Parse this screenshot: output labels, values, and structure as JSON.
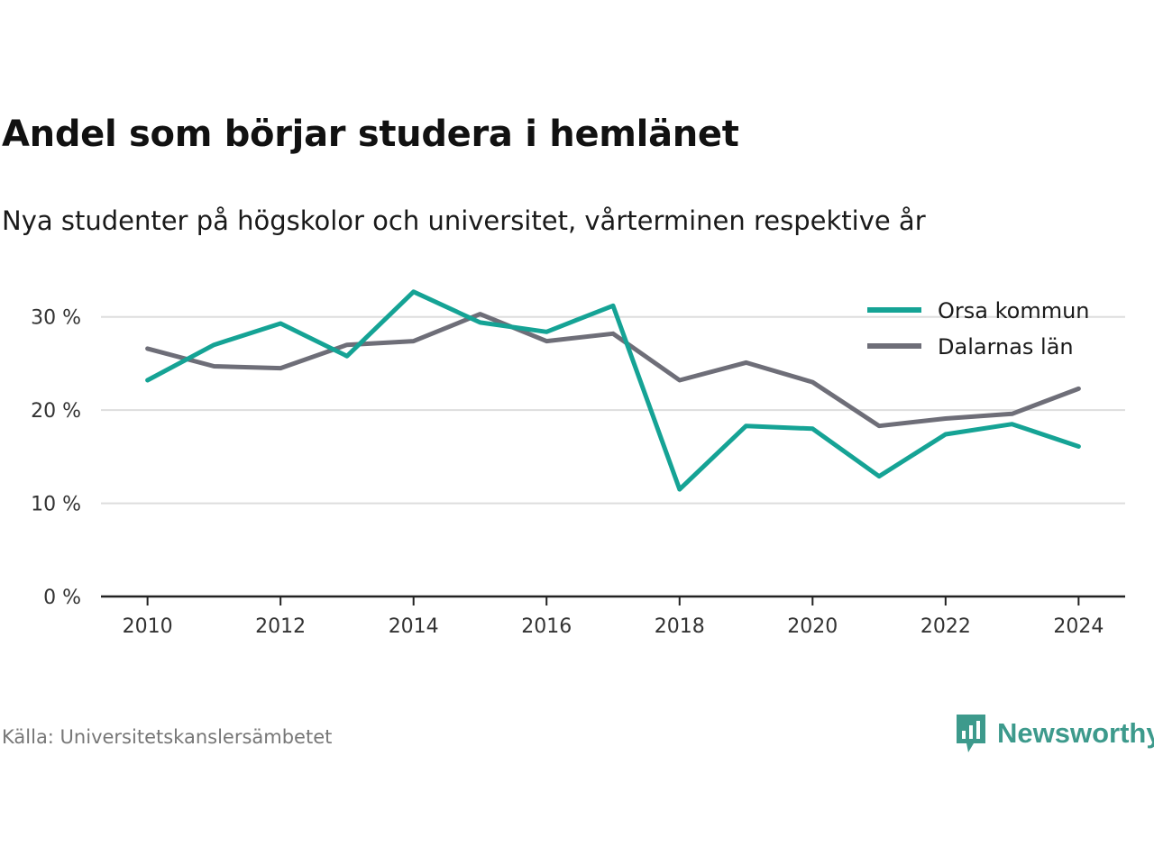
{
  "chart_data": {
    "type": "line",
    "title": "Andel som börjar studera i hemlänet",
    "subtitle": "Nya studenter på högskolor och universitet, vårterminen respektive år",
    "x": [
      2010,
      2011,
      2012,
      2013,
      2014,
      2015,
      2016,
      2017,
      2018,
      2019,
      2020,
      2021,
      2022,
      2023,
      2024
    ],
    "x_ticks": [
      2010,
      2012,
      2014,
      2016,
      2018,
      2020,
      2022,
      2024
    ],
    "y_ticks": [
      {
        "value": 0,
        "label": "0 %"
      },
      {
        "value": 10,
        "label": "10 %"
      },
      {
        "value": 20,
        "label": "20 %"
      },
      {
        "value": 30,
        "label": "30 %"
      }
    ],
    "ylim": [
      0,
      35
    ],
    "xlim": [
      2009.3,
      2024.7
    ],
    "grid": true,
    "legend_position": "top-right",
    "series": [
      {
        "name": "Orsa kommun",
        "color": "#15a395",
        "values": [
          23.2,
          27.0,
          29.3,
          25.8,
          32.7,
          29.4,
          28.4,
          31.2,
          11.5,
          18.3,
          18.0,
          12.9,
          17.4,
          18.5,
          16.1
        ]
      },
      {
        "name": "Dalarnas län",
        "color": "#6e6e78",
        "values": [
          26.6,
          24.7,
          24.5,
          27.0,
          27.4,
          30.3,
          27.4,
          28.2,
          23.2,
          25.1,
          23.0,
          18.3,
          19.1,
          19.6,
          22.3
        ]
      }
    ],
    "source": "Källa: Universitetskanslersämbetet"
  },
  "brand": {
    "name": "Newsworthy",
    "color": "#3d9a8c"
  }
}
